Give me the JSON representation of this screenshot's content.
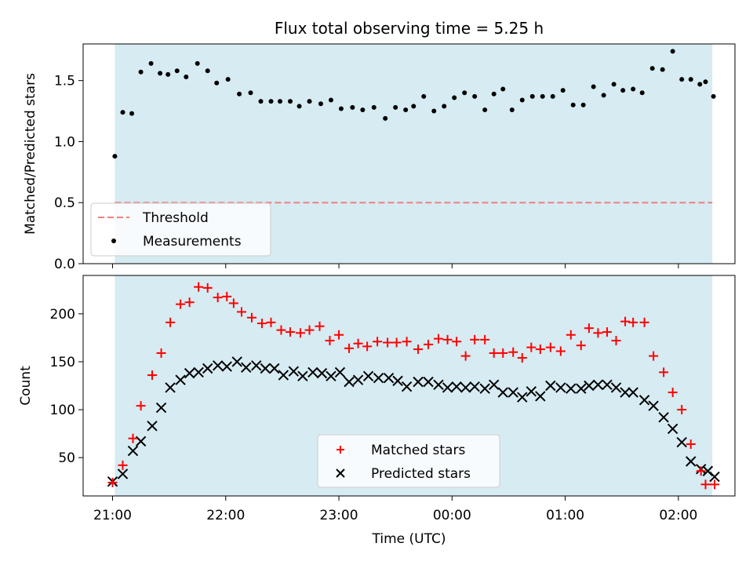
{
  "chart_data": [
    {
      "type": "scatter",
      "title": "Flux total observing time = 5.25 h",
      "ylabel": "Matched/Predicted stars",
      "xlabel": "",
      "x_unit": "hours_since_21:00_UTC",
      "xlim": [
        -0.26,
        5.5
      ],
      "ylim": [
        0,
        1.8
      ],
      "yticks": [
        0.0,
        0.5,
        1.0,
        1.5
      ],
      "ytick_labels": [
        "0.0",
        "0.5",
        "1.0",
        "1.5"
      ],
      "xticks": [
        0,
        1,
        2,
        3,
        4,
        5
      ],
      "observing_span": [
        0.02,
        5.3
      ],
      "threshold": {
        "name": "Threshold",
        "value": 0.5,
        "color": "#f08080"
      },
      "legend_position": "lower-left",
      "series": [
        {
          "name": "Measurements",
          "marker": "dot",
          "color": "#000000",
          "x": [
            0.02,
            0.09,
            0.17,
            0.25,
            0.34,
            0.42,
            0.49,
            0.57,
            0.65,
            0.75,
            0.84,
            0.92,
            1.02,
            1.12,
            1.22,
            1.31,
            1.4,
            1.48,
            1.57,
            1.65,
            1.74,
            1.84,
            1.93,
            2.02,
            2.12,
            2.21,
            2.31,
            2.41,
            2.5,
            2.59,
            2.66,
            2.75,
            2.84,
            2.93,
            3.02,
            3.11,
            3.2,
            3.29,
            3.37,
            3.45,
            3.53,
            3.62,
            3.71,
            3.8,
            3.89,
            3.98,
            4.07,
            4.16,
            4.25,
            4.34,
            4.43,
            4.51,
            4.6,
            4.68,
            4.77,
            4.86,
            4.95,
            5.03,
            5.11,
            5.19,
            5.24,
            5.31
          ],
          "y": [
            0.88,
            1.24,
            1.23,
            1.57,
            1.64,
            1.56,
            1.55,
            1.58,
            1.53,
            1.64,
            1.58,
            1.48,
            1.51,
            1.39,
            1.4,
            1.33,
            1.33,
            1.33,
            1.33,
            1.29,
            1.33,
            1.31,
            1.34,
            1.27,
            1.28,
            1.26,
            1.28,
            1.19,
            1.28,
            1.26,
            1.29,
            1.37,
            1.25,
            1.29,
            1.36,
            1.4,
            1.37,
            1.26,
            1.39,
            1.43,
            1.26,
            1.34,
            1.37,
            1.37,
            1.37,
            1.42,
            1.3,
            1.3,
            1.45,
            1.38,
            1.47,
            1.42,
            1.43,
            1.4,
            1.6,
            1.59,
            1.74,
            1.51,
            1.51,
            1.47,
            1.49,
            1.37
          ]
        }
      ]
    },
    {
      "type": "scatter",
      "title": "",
      "ylabel": "Count",
      "xlabel": "Time (UTC)",
      "x_unit": "hours_since_21:00_UTC",
      "xlim": [
        -0.26,
        5.5
      ],
      "ylim": [
        10,
        240
      ],
      "yticks": [
        50,
        100,
        150,
        200
      ],
      "ytick_labels": [
        "50",
        "100",
        "150",
        "200"
      ],
      "xticks": [
        0,
        1,
        2,
        3,
        4,
        5
      ],
      "xtick_labels": [
        "21:00",
        "22:00",
        "23:00",
        "00:00",
        "01:00",
        "02:00"
      ],
      "observing_span": [
        0.02,
        5.3
      ],
      "legend_position": "lower-center",
      "series": [
        {
          "name": "Matched stars",
          "marker": "plus",
          "color": "#ff0000",
          "x": [
            0.0,
            0.09,
            0.18,
            0.25,
            0.35,
            0.43,
            0.51,
            0.6,
            0.68,
            0.76,
            0.84,
            0.93,
            1.01,
            1.07,
            1.14,
            1.23,
            1.32,
            1.4,
            1.49,
            1.57,
            1.66,
            1.74,
            1.83,
            1.92,
            2.0,
            2.09,
            2.17,
            2.25,
            2.34,
            2.43,
            2.51,
            2.6,
            2.7,
            2.79,
            2.88,
            2.96,
            3.04,
            3.12,
            3.2,
            3.29,
            3.37,
            3.45,
            3.54,
            3.62,
            3.7,
            3.78,
            3.87,
            3.96,
            4.05,
            4.14,
            4.21,
            4.29,
            4.37,
            4.45,
            4.53,
            4.6,
            4.7,
            4.78,
            4.87,
            4.95,
            5.03,
            5.11,
            5.2,
            5.24,
            5.32
          ],
          "y": [
            24,
            42,
            70,
            104,
            136,
            159,
            191,
            210,
            212,
            228,
            227,
            217,
            218,
            211,
            202,
            196,
            190,
            191,
            183,
            181,
            180,
            183,
            187,
            172,
            178,
            164,
            169,
            166,
            171,
            170,
            170,
            171,
            163,
            168,
            174,
            173,
            171,
            156,
            173,
            173,
            159,
            159,
            160,
            154,
            165,
            163,
            165,
            161,
            178,
            167,
            185,
            180,
            181,
            172,
            192,
            191,
            191,
            156,
            139,
            118,
            100,
            64,
            36,
            22,
            22
          ]
        },
        {
          "name": "Predicted stars",
          "marker": "x",
          "color": "#000000",
          "x": [
            0.0,
            0.09,
            0.18,
            0.25,
            0.35,
            0.43,
            0.51,
            0.6,
            0.68,
            0.76,
            0.84,
            0.93,
            1.01,
            1.1,
            1.18,
            1.27,
            1.35,
            1.43,
            1.51,
            1.6,
            1.68,
            1.77,
            1.85,
            1.93,
            2.01,
            2.09,
            2.17,
            2.26,
            2.35,
            2.44,
            2.52,
            2.6,
            2.7,
            2.79,
            2.88,
            2.96,
            3.04,
            3.12,
            3.2,
            3.29,
            3.37,
            3.45,
            3.54,
            3.62,
            3.7,
            3.78,
            3.87,
            3.96,
            4.05,
            4.14,
            4.21,
            4.29,
            4.37,
            4.45,
            4.53,
            4.6,
            4.7,
            4.78,
            4.87,
            4.95,
            5.03,
            5.11,
            5.2,
            5.26,
            5.32
          ],
          "y": [
            25,
            33,
            57,
            67,
            83,
            102,
            123,
            131,
            138,
            139,
            143,
            146,
            145,
            150,
            144,
            146,
            143,
            143,
            136,
            140,
            135,
            139,
            138,
            135,
            139,
            129,
            131,
            135,
            133,
            133,
            130,
            124,
            129,
            129,
            126,
            123,
            124,
            123,
            124,
            122,
            126,
            118,
            118,
            113,
            119,
            114,
            125,
            123,
            122,
            122,
            125,
            126,
            126,
            123,
            118,
            118,
            110,
            104,
            92,
            80,
            66,
            46,
            38,
            36,
            30
          ]
        }
      ]
    }
  ]
}
